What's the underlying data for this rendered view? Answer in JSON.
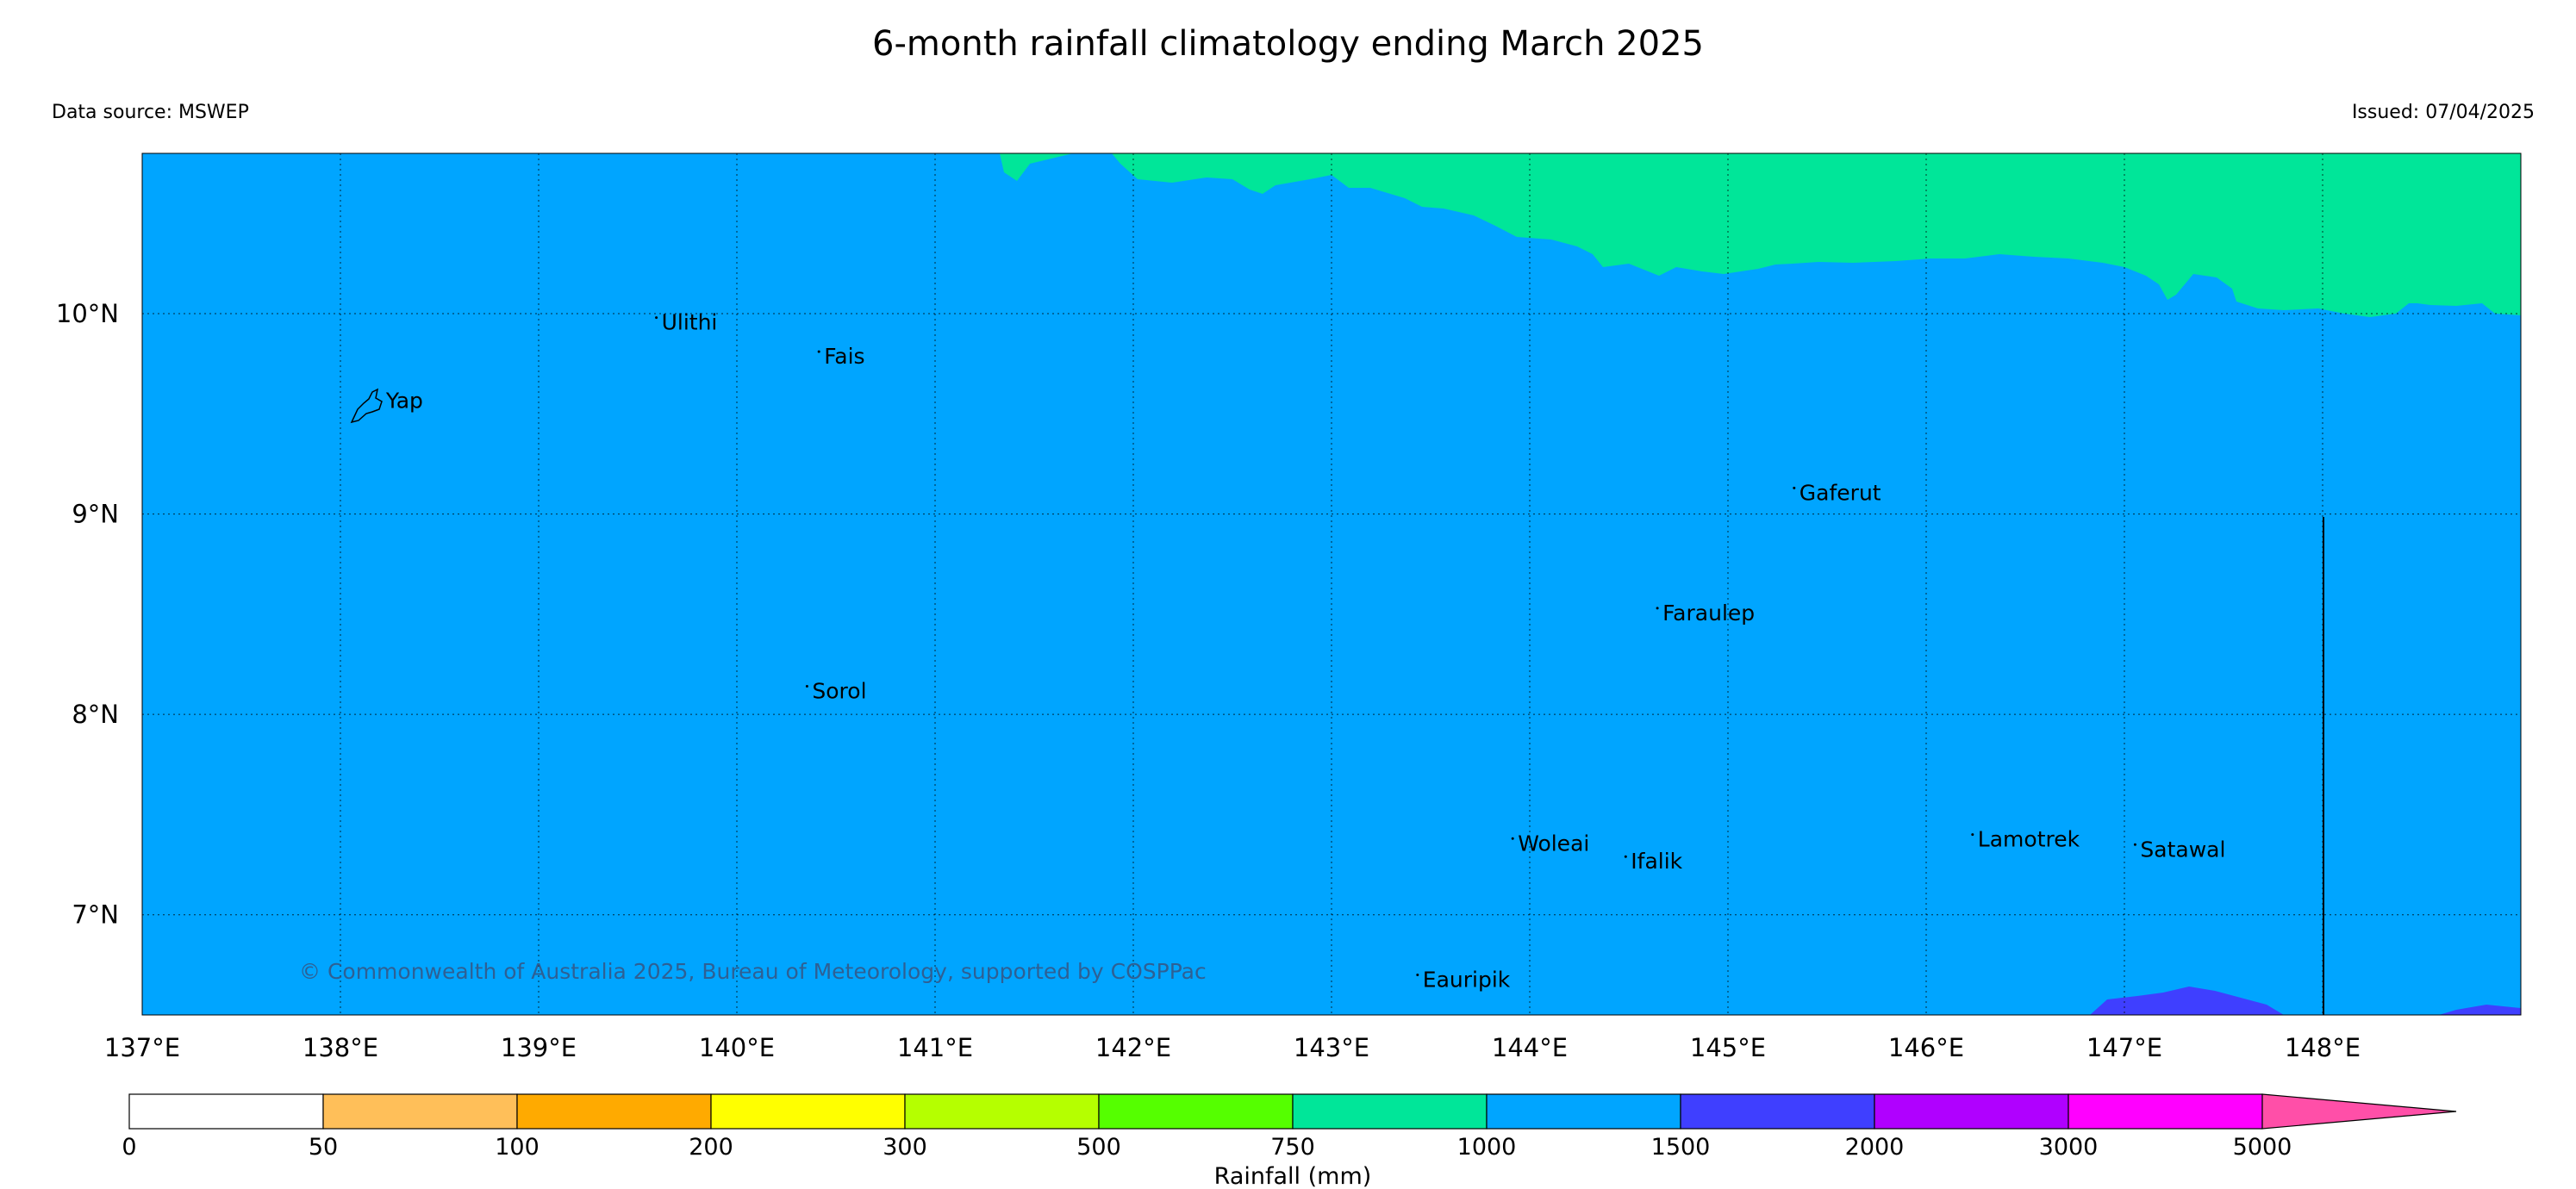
{
  "title": "6-month rainfall climatology ending March 2025",
  "data_source": "Data source: MSWEP",
  "issued": "Issued: 07/04/2025",
  "copyright": "© Commonwealth of Australia 2025, Bureau of Meteorology, supported by COSPPac",
  "map": {
    "lon_range": [
      137.0,
      149.0
    ],
    "lat_range": [
      6.5,
      10.8
    ],
    "lon_ticks": [
      137,
      138,
      139,
      140,
      141,
      142,
      143,
      144,
      145,
      146,
      147,
      148
    ],
    "lon_tick_labels": [
      "137°E",
      "138°E",
      "139°E",
      "140°E",
      "141°E",
      "142°E",
      "143°E",
      "144°E",
      "145°E",
      "146°E",
      "147°E",
      "148°E"
    ],
    "lat_ticks": [
      7,
      8,
      9,
      10
    ],
    "lat_tick_labels": [
      "7°N",
      "8°N",
      "9°N",
      "10°N"
    ],
    "gridlines": "dotted",
    "base_fill_color": "#00a5ff",
    "north_fill_color": "#00e699",
    "south_fill_color": "#3f3fff"
  },
  "places": [
    {
      "name": "Yap",
      "lon": 138.23,
      "lat": 9.53
    },
    {
      "name": "Ulithi",
      "lon": 139.62,
      "lat": 9.92
    },
    {
      "name": "Fais",
      "lon": 140.44,
      "lat": 9.75
    },
    {
      "name": "Gaferut",
      "lon": 145.36,
      "lat": 9.07
    },
    {
      "name": "Faraulep",
      "lon": 144.67,
      "lat": 8.47
    },
    {
      "name": "Sorol",
      "lon": 140.38,
      "lat": 8.08
    },
    {
      "name": "Woleai",
      "lon": 143.94,
      "lat": 7.32
    },
    {
      "name": "Ifalik",
      "lon": 144.51,
      "lat": 7.23
    },
    {
      "name": "Lamotrek",
      "lon": 146.26,
      "lat": 7.34
    },
    {
      "name": "Satawal",
      "lon": 147.08,
      "lat": 7.29
    },
    {
      "name": "Eauripik",
      "lon": 143.46,
      "lat": 6.64
    }
  ],
  "colorbar": {
    "label": "Rainfall (mm)",
    "ticks": [
      "0",
      "50",
      "100",
      "200",
      "300",
      "500",
      "750",
      "1000",
      "1500",
      "2000",
      "3000",
      "5000"
    ],
    "colors": [
      "#ffffff",
      "#ffbf59",
      "#ffaa00",
      "#ffff00",
      "#b5ff00",
      "#55ff00",
      "#00e699",
      "#00a5ff",
      "#3f3fff",
      "#b000ff",
      "#ff00ff"
    ],
    "extend_color": "#ff4fa8"
  }
}
